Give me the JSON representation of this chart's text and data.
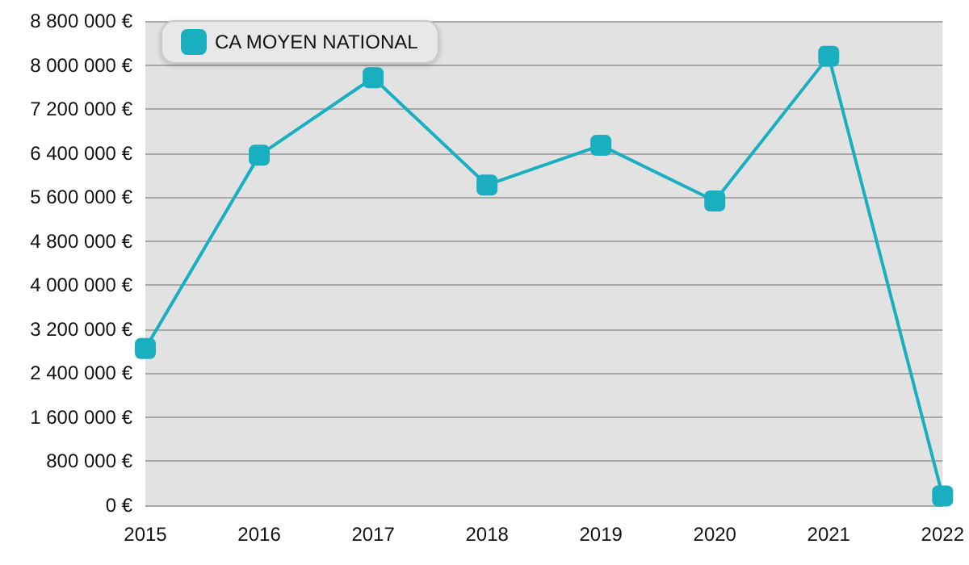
{
  "chart_data": {
    "type": "line",
    "categories": [
      "2015",
      "2016",
      "2017",
      "2018",
      "2019",
      "2020",
      "2021",
      "2022"
    ],
    "series": [
      {
        "name": "CA MOYEN NATIONAL",
        "color": "#1aafc0",
        "values": [
          2850000,
          6360000,
          7770000,
          5820000,
          6540000,
          5530000,
          8160000,
          170000
        ]
      }
    ],
    "ylim": [
      0,
      8800000
    ],
    "yticks": [
      {
        "value": 0,
        "label": "0 €"
      },
      {
        "value": 800000,
        "label": "800 000 €"
      },
      {
        "value": 1600000,
        "label": "1 600 000 €"
      },
      {
        "value": 2400000,
        "label": "2 400 000 €"
      },
      {
        "value": 3200000,
        "label": "3 200 000 €"
      },
      {
        "value": 4000000,
        "label": "4 000 000 €"
      },
      {
        "value": 4800000,
        "label": "4 800 000 €"
      },
      {
        "value": 5600000,
        "label": "5 600 000 €"
      },
      {
        "value": 6400000,
        "label": "6 400 000 €"
      },
      {
        "value": 7200000,
        "label": "7 200 000 €"
      },
      {
        "value": 8000000,
        "label": "8 000 000 €"
      },
      {
        "value": 8800000,
        "label": "8 800 000 €"
      }
    ],
    "grid": "y",
    "legend": "top left",
    "marker": "square",
    "line_style": "solid"
  }
}
